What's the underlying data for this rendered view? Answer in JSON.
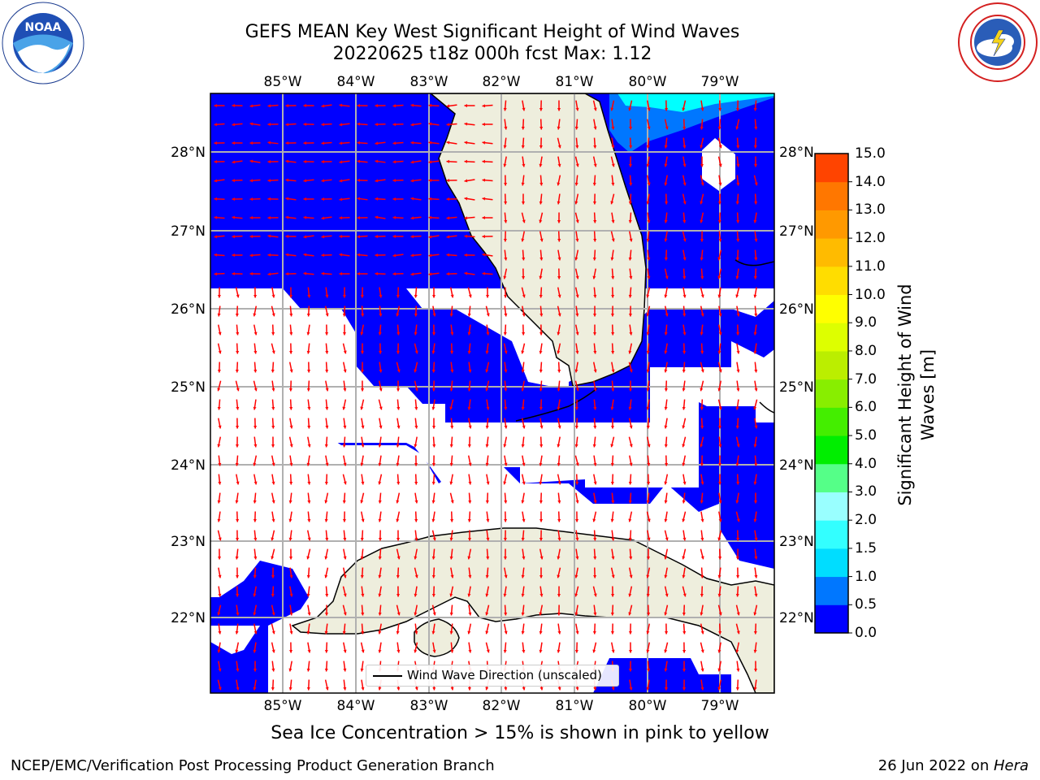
{
  "title": {
    "line1": "GEFS MEAN Key West Significant Height of Wind Waves",
    "line2": "20220625 t18z 000h fcst   Max: 1.12"
  },
  "logos": {
    "noaa": "NOAA",
    "noaa_ring": "NATIONAL OCEANIC AND ATMOSPHERIC ADMINISTRATION · U.S. DEPARTMENT OF COMMERCE",
    "nws_ring": "NATIONAL WEATHER SERVICE"
  },
  "map": {
    "lon_labels": [
      "85°W",
      "84°W",
      "83°W",
      "82°W",
      "81°W",
      "80°W",
      "79°W"
    ],
    "lat_labels": [
      "28°N",
      "27°N",
      "26°N",
      "25°N",
      "24°N",
      "23°N",
      "22°N"
    ],
    "colors": {
      "land": "#eeeedd",
      "water_low": "#0000ff",
      "arrow": "#ff0000",
      "grid": "#b0b0b0"
    },
    "legend": {
      "label": "Wind Wave Direction (unscaled)"
    }
  },
  "colorbar": {
    "label": "Significant Height of Wind Waves [m]",
    "ticks": [
      "0.0",
      "0.5",
      "1.0",
      "1.5",
      "2.0",
      "3.0",
      "4.0",
      "5.0",
      "6.0",
      "7.0",
      "8.0",
      "9.0",
      "10.0",
      "11.0",
      "12.0",
      "13.0",
      "14.0",
      "15.0"
    ],
    "colors": [
      "#0000ff",
      "#0077ff",
      "#00ddff",
      "#33ffff",
      "#99ffff",
      "#55ff88",
      "#00ee00",
      "#44ee00",
      "#88ee00",
      "#bbee00",
      "#ddff00",
      "#ffff00",
      "#ffdd00",
      "#ffbb00",
      "#ff9900",
      "#ff7700",
      "#ff4400",
      "#ff0000"
    ]
  },
  "footer": {
    "ice_note": "Sea Ice Concentration > 15% is shown in pink to yellow",
    "left": "NCEP/EMC/Verification Post Processing Product Generation Branch",
    "right_date": "26 Jun 2022 on ",
    "right_machine": "Hera"
  }
}
